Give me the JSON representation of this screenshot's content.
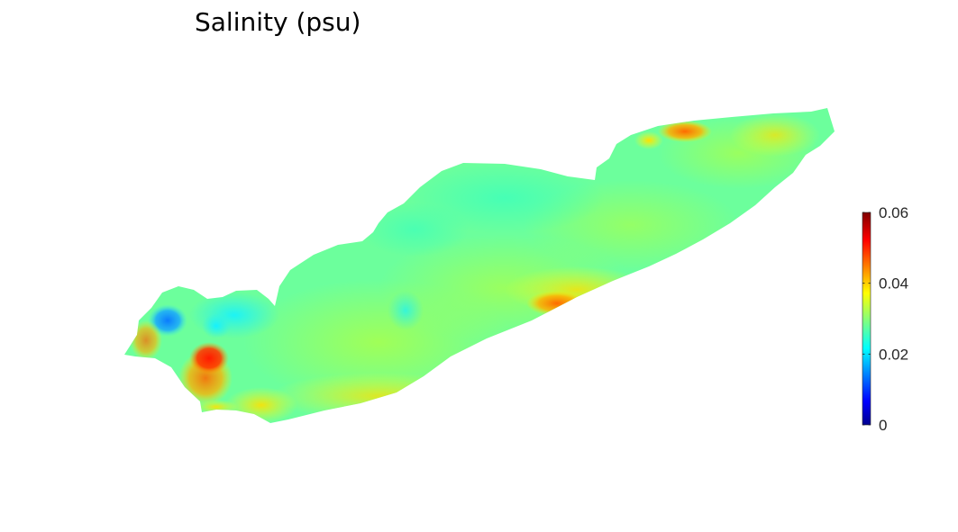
{
  "chart_data": {
    "type": "heatmap",
    "title": "Salinity (psu)",
    "xlabel": "",
    "ylabel": "",
    "axes_visible": false,
    "grid": false,
    "colormap": "jet",
    "colorbar": {
      "location": "right",
      "clim": [
        0,
        0.06
      ],
      "ticks": [
        "0",
        "0.02",
        "0.04",
        "0.06"
      ],
      "tick_values": [
        0,
        0.02,
        0.04,
        0.06
      ]
    },
    "field_description_values": {
      "background_range": [
        0.026,
        0.036
      ],
      "hotspots": [
        {
          "region": "west-basin",
          "value": 0.06
        },
        {
          "region": "west-basin-low",
          "value": 0.018
        },
        {
          "region": "central-south-shore",
          "value": 0.05
        },
        {
          "region": "east-north-shore",
          "value": 0.052
        }
      ]
    }
  }
}
